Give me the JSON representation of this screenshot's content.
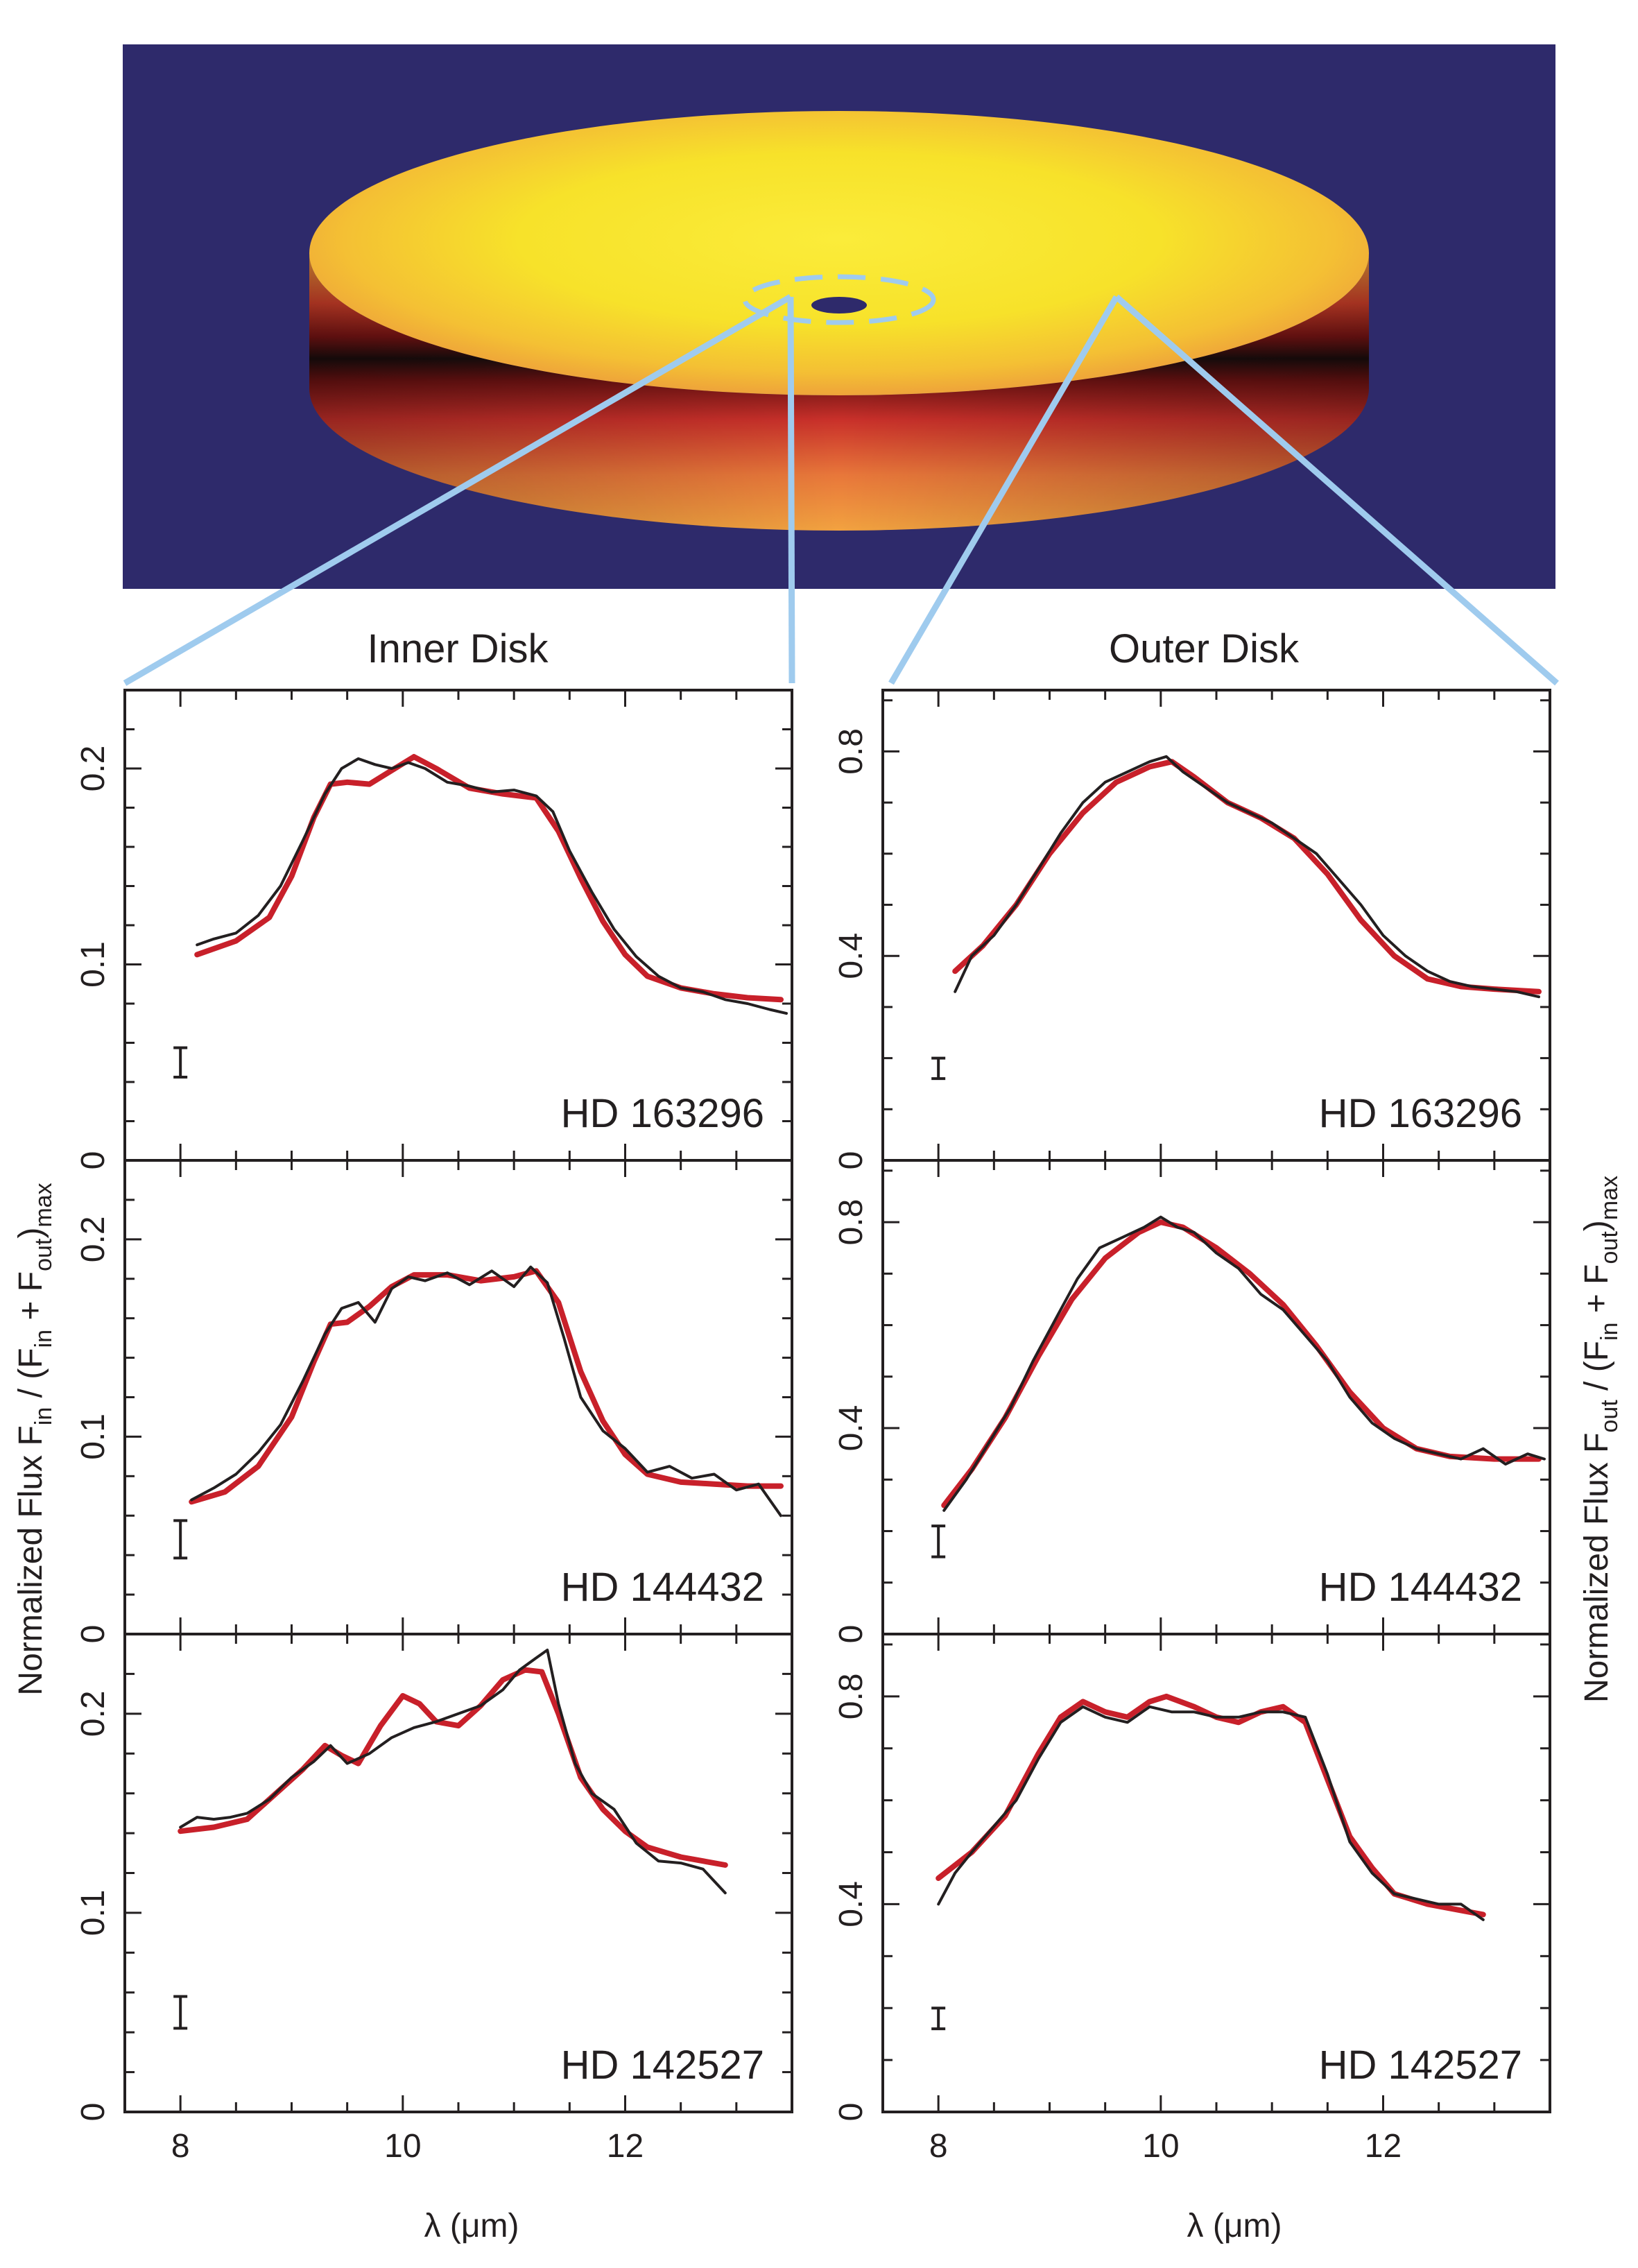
{
  "colors": {
    "background_panel": "#2e2a6b",
    "disk_yellow": "#f7e22a",
    "disk_orange": "#eea33a",
    "disk_red": "#c1272d",
    "connector": "#9fcbee",
    "model_curve": "#c8202a",
    "data_curve": "#231f20"
  },
  "illustration": {
    "description_icons": [
      "protoplanetary-disk-icon"
    ]
  },
  "column_titles": {
    "inner": "Inner Disk",
    "outer": "Outer Disk"
  },
  "left_axis_title": {
    "main": "Normalized Flux  F",
    "sub1": "in",
    "mid": " / (F",
    "sub2": "in",
    "mid2": " + F",
    "sub3": "out",
    "mid3": ")",
    "sub4": "max"
  },
  "right_axis_title": {
    "main": "Normalized Flux  F",
    "sub1": "out",
    "mid": " / (F",
    "sub2": "in",
    "mid2": " + F",
    "sub3": "out",
    "mid3": ")",
    "sub4": "max"
  },
  "x_axis_title": {
    "inner": "λ (μm)",
    "outer": "λ (μm)"
  },
  "chart_data": [
    {
      "type": "line",
      "column": "inner",
      "star": "HD 163296",
      "xlim": [
        7.5,
        13.5
      ],
      "ylim": [
        0,
        0.24
      ],
      "xticks": [
        "8",
        "10",
        "12"
      ],
      "yticks": [
        "0",
        "0.1",
        "0.2"
      ],
      "ytick_values": [
        0,
        0.1,
        0.2
      ],
      "error_bar": {
        "x": 8.0,
        "y": 0.05,
        "half": 0.0075
      },
      "series": [
        {
          "role": "model",
          "x": [
            8.15,
            8.5,
            8.8,
            9.0,
            9.2,
            9.35,
            9.5,
            9.7,
            9.9,
            10.1,
            10.3,
            10.6,
            10.9,
            11.2,
            11.4,
            11.6,
            11.8,
            12.0,
            12.2,
            12.5,
            12.8,
            13.1,
            13.4
          ],
          "y": [
            0.105,
            0.112,
            0.124,
            0.145,
            0.175,
            0.192,
            0.193,
            0.192,
            0.199,
            0.206,
            0.2,
            0.19,
            0.187,
            0.185,
            0.168,
            0.144,
            0.122,
            0.105,
            0.094,
            0.088,
            0.085,
            0.083,
            0.082
          ]
        },
        {
          "role": "observed",
          "x": [
            8.15,
            8.3,
            8.5,
            8.7,
            8.9,
            9.1,
            9.3,
            9.45,
            9.6,
            9.75,
            9.9,
            10.05,
            10.2,
            10.4,
            10.6,
            10.8,
            11.0,
            11.2,
            11.35,
            11.5,
            11.7,
            11.9,
            12.1,
            12.3,
            12.5,
            12.7,
            12.9,
            13.1,
            13.3,
            13.45
          ],
          "y": [
            0.11,
            0.113,
            0.116,
            0.125,
            0.14,
            0.163,
            0.187,
            0.2,
            0.205,
            0.202,
            0.2,
            0.203,
            0.2,
            0.193,
            0.191,
            0.188,
            0.189,
            0.186,
            0.178,
            0.158,
            0.137,
            0.118,
            0.104,
            0.094,
            0.088,
            0.086,
            0.082,
            0.08,
            0.077,
            0.075
          ]
        }
      ]
    },
    {
      "type": "line",
      "column": "outer",
      "star": "HD 163296",
      "xlim": [
        7.5,
        13.5
      ],
      "ylim": [
        0,
        0.92
      ],
      "xticks": [
        "8",
        "10",
        "12"
      ],
      "yticks": [
        "0",
        "0.4",
        "0.8"
      ],
      "ytick_values": [
        0,
        0.4,
        0.8
      ],
      "error_bar": {
        "x": 8.0,
        "y": 0.18,
        "half": 0.02
      },
      "series": [
        {
          "role": "model",
          "x": [
            8.15,
            8.4,
            8.7,
            9.0,
            9.3,
            9.6,
            9.9,
            10.1,
            10.3,
            10.6,
            10.9,
            11.2,
            11.5,
            11.8,
            12.1,
            12.4,
            12.7,
            13.0,
            13.4
          ],
          "y": [
            0.37,
            0.42,
            0.5,
            0.6,
            0.68,
            0.74,
            0.77,
            0.78,
            0.75,
            0.7,
            0.67,
            0.63,
            0.56,
            0.47,
            0.4,
            0.355,
            0.34,
            0.335,
            0.33
          ]
        },
        {
          "role": "observed",
          "x": [
            8.15,
            8.3,
            8.5,
            8.7,
            8.9,
            9.1,
            9.3,
            9.5,
            9.7,
            9.9,
            10.05,
            10.2,
            10.4,
            10.6,
            10.8,
            11.0,
            11.2,
            11.4,
            11.6,
            11.8,
            12.0,
            12.2,
            12.4,
            12.6,
            12.8,
            13.0,
            13.2,
            13.4
          ],
          "y": [
            0.33,
            0.4,
            0.44,
            0.5,
            0.57,
            0.64,
            0.7,
            0.74,
            0.76,
            0.78,
            0.79,
            0.76,
            0.73,
            0.7,
            0.68,
            0.66,
            0.63,
            0.6,
            0.55,
            0.5,
            0.44,
            0.4,
            0.37,
            0.35,
            0.34,
            0.335,
            0.33,
            0.32
          ]
        }
      ]
    },
    {
      "type": "line",
      "column": "inner",
      "star": "HD 144432",
      "xlim": [
        7.5,
        13.5
      ],
      "ylim": [
        0,
        0.24
      ],
      "xticks": [
        "8",
        "10",
        "12"
      ],
      "yticks": [
        "0",
        "0.1",
        "0.2"
      ],
      "ytick_values": [
        0,
        0.1,
        0.2
      ],
      "error_bar": {
        "x": 8.0,
        "y": 0.048,
        "half": 0.0095
      },
      "series": [
        {
          "role": "model",
          "x": [
            8.1,
            8.4,
            8.7,
            9.0,
            9.2,
            9.35,
            9.5,
            9.7,
            9.9,
            10.1,
            10.4,
            10.7,
            11.0,
            11.2,
            11.4,
            11.6,
            11.8,
            12.0,
            12.2,
            12.5,
            12.8,
            13.1,
            13.4
          ],
          "y": [
            0.067,
            0.072,
            0.085,
            0.11,
            0.138,
            0.157,
            0.158,
            0.166,
            0.176,
            0.182,
            0.182,
            0.179,
            0.181,
            0.184,
            0.168,
            0.133,
            0.108,
            0.091,
            0.081,
            0.077,
            0.076,
            0.075,
            0.075
          ]
        },
        {
          "role": "observed",
          "x": [
            8.1,
            8.3,
            8.5,
            8.7,
            8.9,
            9.1,
            9.3,
            9.45,
            9.6,
            9.75,
            9.9,
            10.05,
            10.2,
            10.4,
            10.6,
            10.8,
            11.0,
            11.15,
            11.3,
            11.45,
            11.6,
            11.8,
            12.0,
            12.2,
            12.4,
            12.6,
            12.8,
            13.0,
            13.2,
            13.4
          ],
          "y": [
            0.068,
            0.074,
            0.081,
            0.092,
            0.106,
            0.128,
            0.152,
            0.165,
            0.168,
            0.158,
            0.175,
            0.181,
            0.179,
            0.183,
            0.177,
            0.184,
            0.176,
            0.186,
            0.178,
            0.15,
            0.12,
            0.103,
            0.094,
            0.082,
            0.085,
            0.079,
            0.081,
            0.073,
            0.076,
            0.06
          ]
        }
      ]
    },
    {
      "type": "line",
      "column": "outer",
      "star": "HD 144432",
      "xlim": [
        7.5,
        13.5
      ],
      "ylim": [
        0,
        0.92
      ],
      "xticks": [
        "8",
        "10",
        "12"
      ],
      "yticks": [
        "0",
        "0.4",
        "0.8"
      ],
      "ytick_values": [
        0,
        0.4,
        0.8
      ],
      "error_bar": {
        "x": 8.0,
        "y": 0.18,
        "half": 0.03
      },
      "series": [
        {
          "role": "model",
          "x": [
            8.05,
            8.3,
            8.6,
            8.9,
            9.2,
            9.5,
            9.8,
            10.0,
            10.2,
            10.5,
            10.8,
            11.1,
            11.4,
            11.7,
            12.0,
            12.3,
            12.6,
            13.0,
            13.4
          ],
          "y": [
            0.25,
            0.32,
            0.42,
            0.54,
            0.65,
            0.73,
            0.78,
            0.8,
            0.79,
            0.75,
            0.7,
            0.64,
            0.56,
            0.47,
            0.4,
            0.36,
            0.345,
            0.34,
            0.34
          ]
        },
        {
          "role": "observed",
          "x": [
            8.05,
            8.25,
            8.45,
            8.65,
            8.85,
            9.05,
            9.25,
            9.45,
            9.65,
            9.85,
            10.0,
            10.15,
            10.3,
            10.5,
            10.7,
            10.9,
            11.1,
            11.3,
            11.5,
            11.7,
            11.9,
            12.1,
            12.3,
            12.5,
            12.7,
            12.9,
            13.1,
            13.3,
            13.45
          ],
          "y": [
            0.24,
            0.3,
            0.37,
            0.44,
            0.53,
            0.61,
            0.69,
            0.75,
            0.77,
            0.79,
            0.81,
            0.79,
            0.78,
            0.74,
            0.71,
            0.66,
            0.63,
            0.58,
            0.53,
            0.46,
            0.41,
            0.38,
            0.36,
            0.35,
            0.34,
            0.36,
            0.33,
            0.35,
            0.34
          ]
        }
      ]
    },
    {
      "type": "line",
      "column": "inner",
      "star": "HD 142527",
      "xlim": [
        7.5,
        13.5
      ],
      "ylim": [
        0,
        0.24
      ],
      "xticks": [
        "8",
        "10",
        "12"
      ],
      "yticks": [
        "0",
        "0.1",
        "0.2"
      ],
      "ytick_values": [
        0,
        0.1,
        0.2
      ],
      "error_bar": {
        "x": 8.0,
        "y": 0.05,
        "half": 0.008
      },
      "series": [
        {
          "role": "model",
          "x": [
            8.0,
            8.3,
            8.6,
            8.9,
            9.1,
            9.3,
            9.45,
            9.6,
            9.8,
            10.0,
            10.15,
            10.3,
            10.5,
            10.7,
            10.9,
            11.1,
            11.25,
            11.4,
            11.6,
            11.8,
            12.0,
            12.2,
            12.5,
            12.9
          ],
          "y": [
            0.141,
            0.143,
            0.147,
            0.162,
            0.172,
            0.184,
            0.179,
            0.175,
            0.194,
            0.209,
            0.205,
            0.196,
            0.194,
            0.204,
            0.217,
            0.222,
            0.221,
            0.2,
            0.168,
            0.152,
            0.141,
            0.133,
            0.128,
            0.124
          ]
        },
        {
          "role": "observed",
          "x": [
            8.0,
            8.15,
            8.3,
            8.45,
            8.6,
            8.8,
            9.0,
            9.2,
            9.35,
            9.5,
            9.7,
            9.9,
            10.1,
            10.3,
            10.5,
            10.7,
            10.9,
            11.05,
            11.2,
            11.3,
            11.4,
            11.55,
            11.7,
            11.9,
            12.1,
            12.3,
            12.5,
            12.7,
            12.9
          ],
          "y": [
            0.143,
            0.148,
            0.147,
            0.148,
            0.15,
            0.157,
            0.168,
            0.176,
            0.184,
            0.175,
            0.18,
            0.188,
            0.193,
            0.196,
            0.2,
            0.204,
            0.212,
            0.222,
            0.228,
            0.232,
            0.205,
            0.175,
            0.16,
            0.152,
            0.135,
            0.126,
            0.125,
            0.122,
            0.11
          ]
        }
      ]
    },
    {
      "type": "line",
      "column": "outer",
      "star": "HD 142527",
      "xlim": [
        7.5,
        13.5
      ],
      "ylim": [
        0,
        0.92
      ],
      "xticks": [
        "8",
        "10",
        "12"
      ],
      "yticks": [
        "0",
        "0.4",
        "0.8"
      ],
      "ytick_values": [
        0,
        0.4,
        0.8
      ],
      "error_bar": {
        "x": 8.0,
        "y": 0.18,
        "half": 0.02
      },
      "series": [
        {
          "role": "model",
          "x": [
            8.0,
            8.3,
            8.6,
            8.9,
            9.1,
            9.3,
            9.5,
            9.7,
            9.9,
            10.05,
            10.3,
            10.5,
            10.7,
            10.9,
            11.1,
            11.3,
            11.5,
            11.7,
            11.9,
            12.1,
            12.4,
            12.9
          ],
          "y": [
            0.45,
            0.5,
            0.57,
            0.69,
            0.76,
            0.79,
            0.77,
            0.76,
            0.79,
            0.8,
            0.78,
            0.76,
            0.75,
            0.77,
            0.78,
            0.75,
            0.64,
            0.53,
            0.47,
            0.42,
            0.4,
            0.38
          ]
        },
        {
          "role": "observed",
          "x": [
            8.0,
            8.15,
            8.3,
            8.5,
            8.7,
            8.9,
            9.1,
            9.3,
            9.5,
            9.7,
            9.9,
            10.1,
            10.3,
            10.5,
            10.7,
            10.9,
            11.1,
            11.3,
            11.5,
            11.7,
            11.9,
            12.1,
            12.3,
            12.5,
            12.7,
            12.9
          ],
          "y": [
            0.4,
            0.46,
            0.5,
            0.55,
            0.6,
            0.68,
            0.75,
            0.78,
            0.76,
            0.75,
            0.78,
            0.77,
            0.77,
            0.76,
            0.76,
            0.77,
            0.77,
            0.76,
            0.65,
            0.52,
            0.46,
            0.42,
            0.41,
            0.4,
            0.4,
            0.37
          ]
        }
      ]
    }
  ]
}
